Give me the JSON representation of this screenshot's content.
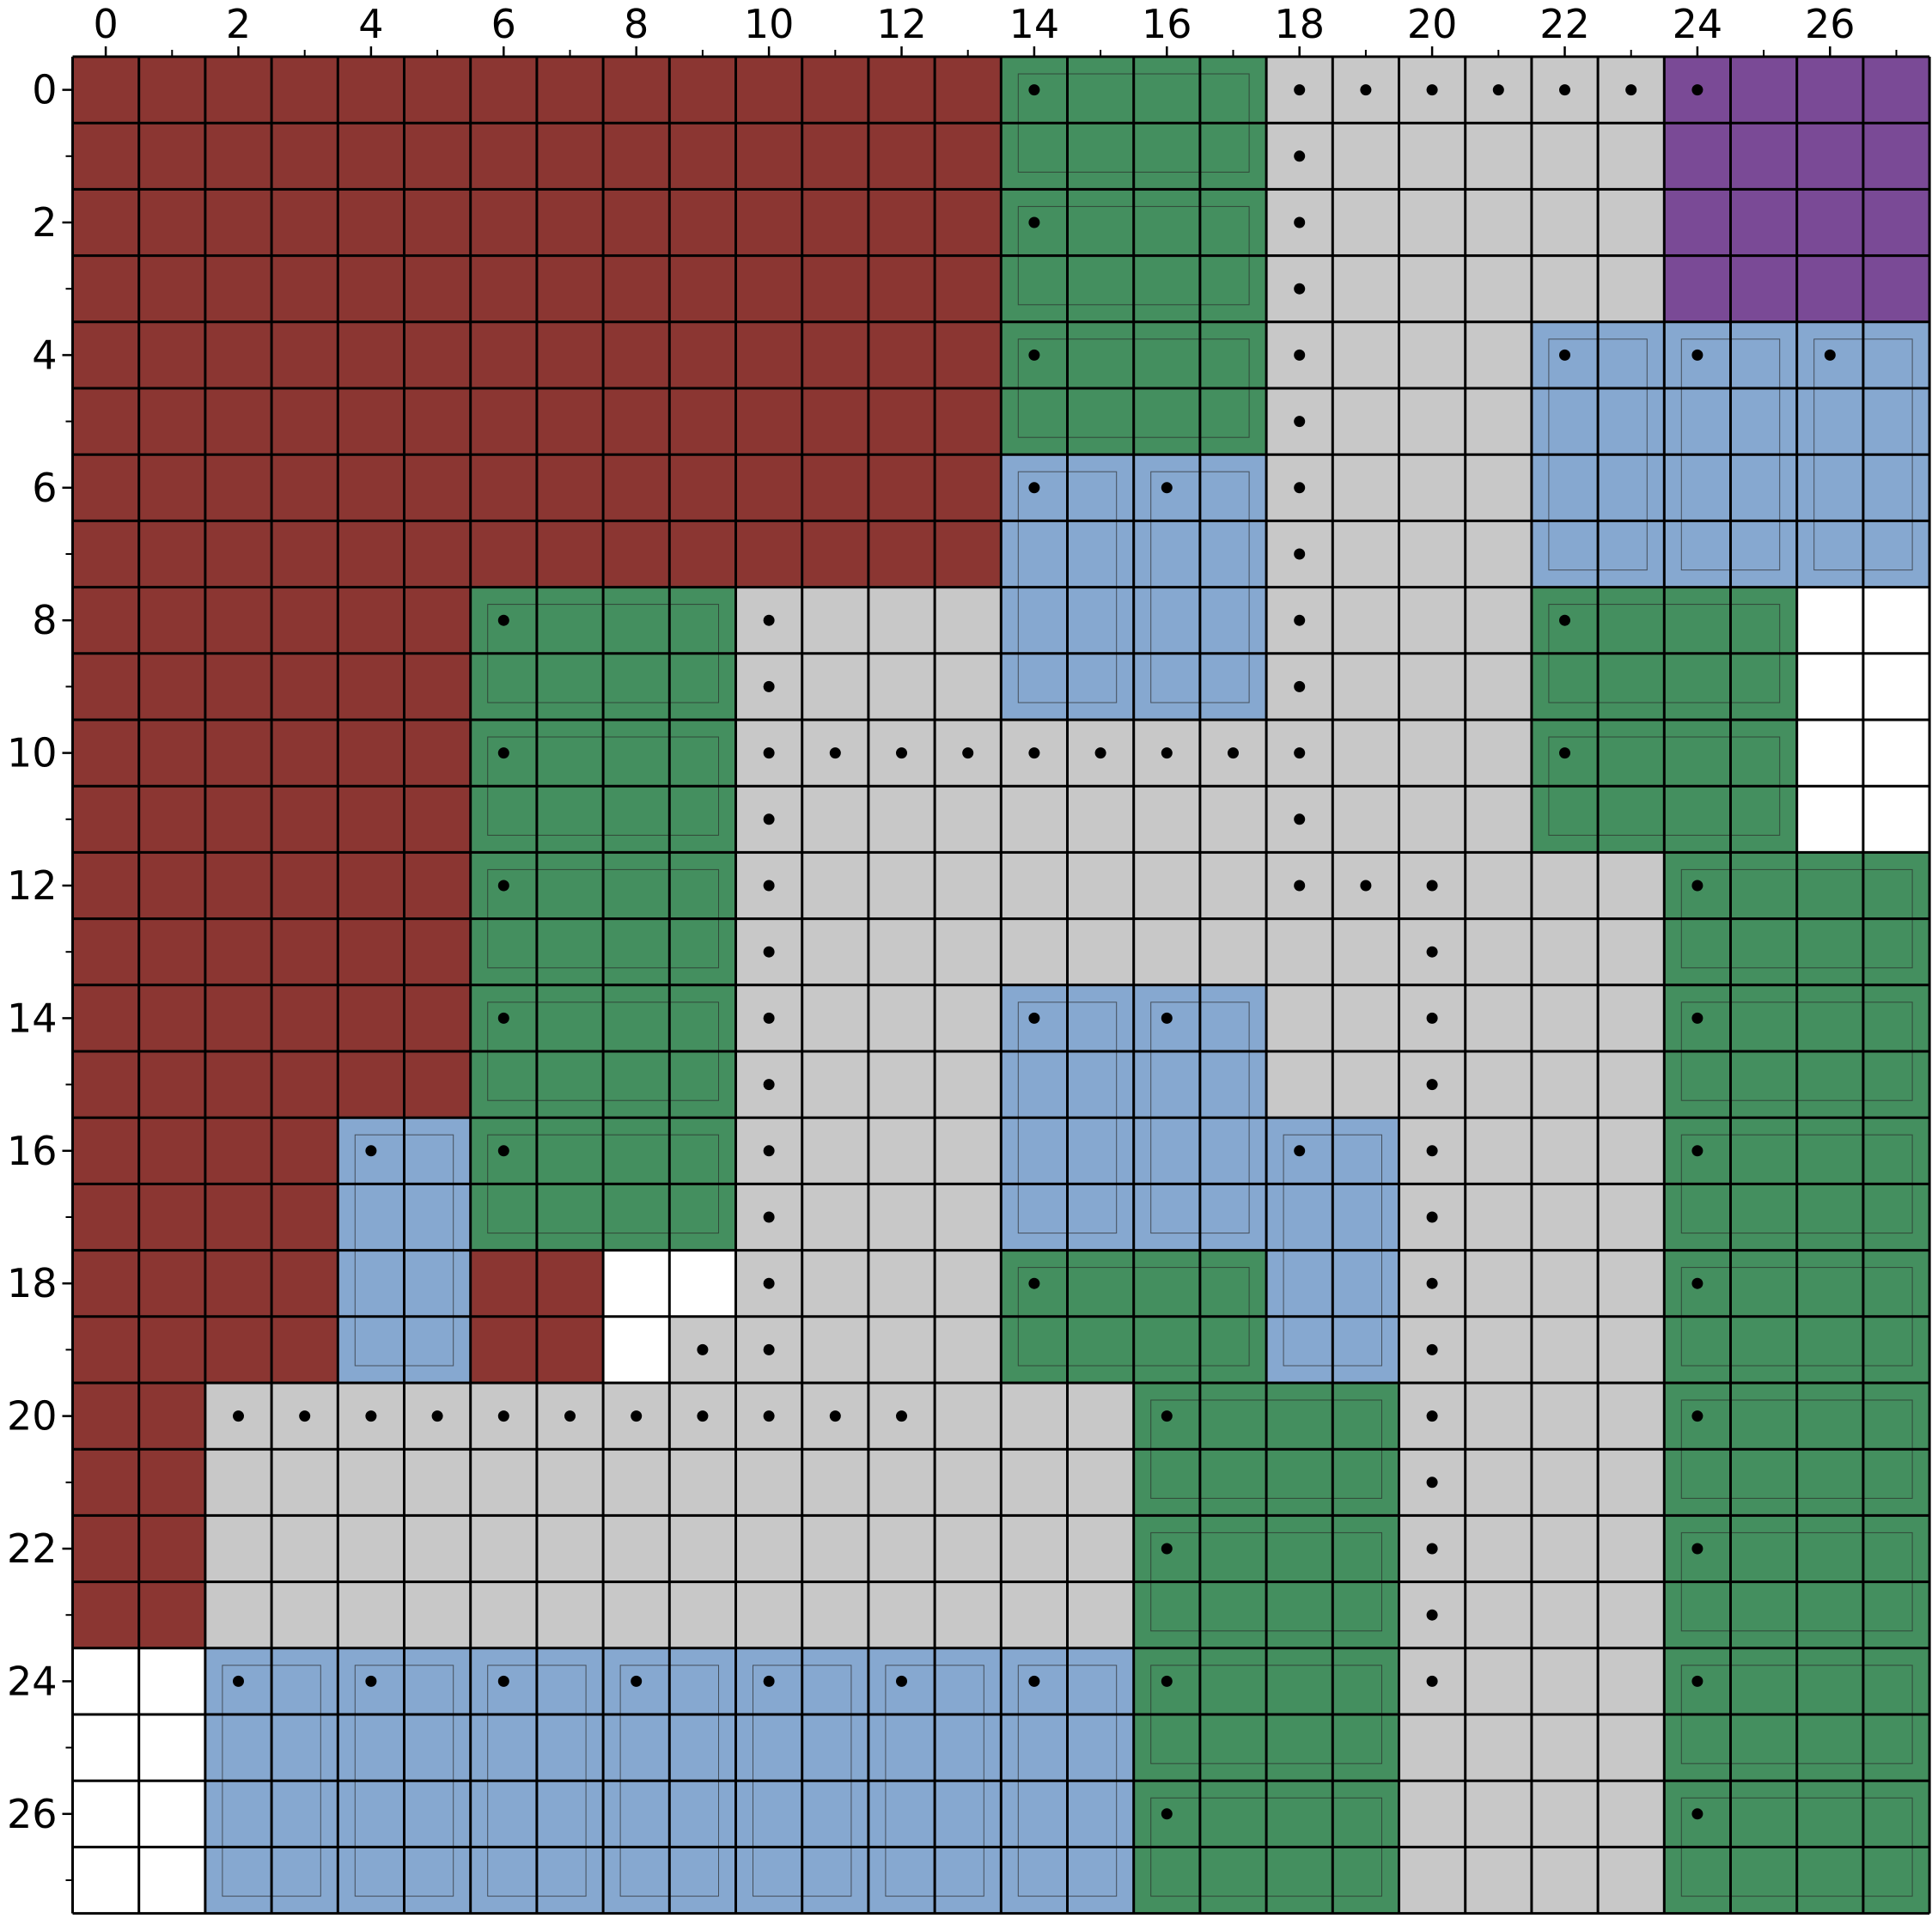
{
  "grid": {
    "rows": 28,
    "cols": 28
  },
  "axes": {
    "x_ticks": [
      "0",
      "2",
      "4",
      "6",
      "8",
      "10",
      "12",
      "14",
      "16",
      "18",
      "20",
      "22",
      "24",
      "26"
    ],
    "y_ticks": [
      "0",
      "2",
      "4",
      "6",
      "8",
      "10",
      "12",
      "14",
      "16",
      "18",
      "20",
      "22",
      "24",
      "26"
    ]
  },
  "colors": {
    "red": "#8b3632",
    "green": "#448f5f",
    "gray": "#c8c8c8",
    "purple": "#7a4a96",
    "blue": "#86a8d0",
    "white": "#ffffff",
    "gridline": "#000000",
    "dot": "#000000"
  },
  "cell_rows": [
    "RRRRRRRRRRRRRRGGGGSSSSSSPPPP",
    "RRRRRRRRRRRRRRGGGGSSSSSSPPPP",
    "RRRRRRRRRRRRRRGGGGSSSSSSPPPP",
    "RRRRRRRRRRRRRRGGGGSSSSSSPPPP",
    "RRRRRRRRRRRRRRGGGGSSSSBBBBBB",
    "RRRRRRRRRRRRRRGGGGSSSSBBBBBB",
    "RRRRRRRRRRRRRRBBBBSSSSBBBBBB",
    "RRRRRRRRRRRRRRBBBBSSSSBBBBBB",
    "RRRRRRGGGGSSSSBBBBSSSSGGGGWW",
    "RRRRRRGGGGSSSSBBBBSSSSGGGGWW",
    "RRRRRRGGGGSSSSSSSSSSSSGGGGWW",
    "RRRRRRGGGGSSSSSSSSSSSSGGGGWW",
    "RRRRRRGGGGSSSSSSSSSSSSSSGGGG",
    "RRRRRRGGGGSSSSSSSSSSSSSSGGGG",
    "RRRRRRGGGGSSSSBBBBSSSSSSGGGG",
    "RRRRRRGGGGSSSSBBBBSSSSSSGGGG",
    "RRRRBBGGGGSSSSBBBBBBSSSSGGGG",
    "RRRRBBGGGGSSSSBBBBBBSSSSGGGG",
    "RRRRBBRRWWSSSSGGGGBBSSSSGGGG",
    "RRRRBBRRWSSSSSGGGGBBSSSSGGGG",
    "RRSSSSSSSSSSSSSSGGGGSSSSGGGG",
    "RRSSSSSSSSSSSSSSGGGGSSSSGGGG",
    "RRSSSSSSSSSSSSSSGGGGSSSSGGGG",
    "RRSSSSSSSSSSSSSSGGGGSSSSGGGG",
    "WWBBBBBBBBBBBBBBGGGGSSSSGGGG",
    "WWBBBBBBBBBBBBBBGGGGSSSSGGGG",
    "WWBBBBBBBBBBBBBBGGGGSSSSGGGG",
    "WWBBBBBBBBBBBBBBGGGGSSSSGGGG"
  ],
  "blocks": [
    {
      "c": 14,
      "r": 0,
      "w": 4,
      "h": 2
    },
    {
      "c": 14,
      "r": 2,
      "w": 4,
      "h": 2
    },
    {
      "c": 14,
      "r": 4,
      "w": 4,
      "h": 2
    },
    {
      "c": 14,
      "r": 6,
      "w": 2,
      "h": 4
    },
    {
      "c": 16,
      "r": 6,
      "w": 2,
      "h": 4
    },
    {
      "c": 22,
      "r": 4,
      "w": 2,
      "h": 4
    },
    {
      "c": 24,
      "r": 4,
      "w": 2,
      "h": 4
    },
    {
      "c": 26,
      "r": 4,
      "w": 2,
      "h": 4
    },
    {
      "c": 6,
      "r": 8,
      "w": 4,
      "h": 2
    },
    {
      "c": 6,
      "r": 10,
      "w": 4,
      "h": 2
    },
    {
      "c": 6,
      "r": 12,
      "w": 4,
      "h": 2
    },
    {
      "c": 6,
      "r": 14,
      "w": 4,
      "h": 2
    },
    {
      "c": 6,
      "r": 16,
      "w": 4,
      "h": 2
    },
    {
      "c": 22,
      "r": 8,
      "w": 4,
      "h": 2
    },
    {
      "c": 22,
      "r": 10,
      "w": 4,
      "h": 2
    },
    {
      "c": 24,
      "r": 12,
      "w": 4,
      "h": 2
    },
    {
      "c": 24,
      "r": 14,
      "w": 4,
      "h": 2
    },
    {
      "c": 24,
      "r": 16,
      "w": 4,
      "h": 2
    },
    {
      "c": 24,
      "r": 18,
      "w": 4,
      "h": 2
    },
    {
      "c": 24,
      "r": 20,
      "w": 4,
      "h": 2
    },
    {
      "c": 24,
      "r": 22,
      "w": 4,
      "h": 2
    },
    {
      "c": 24,
      "r": 24,
      "w": 4,
      "h": 2
    },
    {
      "c": 24,
      "r": 26,
      "w": 4,
      "h": 2
    },
    {
      "c": 14,
      "r": 14,
      "w": 2,
      "h": 4
    },
    {
      "c": 16,
      "r": 14,
      "w": 2,
      "h": 4
    },
    {
      "c": 4,
      "r": 16,
      "w": 2,
      "h": 4
    },
    {
      "c": 18,
      "r": 16,
      "w": 2,
      "h": 4
    },
    {
      "c": 14,
      "r": 18,
      "w": 4,
      "h": 2
    },
    {
      "c": 16,
      "r": 20,
      "w": 4,
      "h": 2
    },
    {
      "c": 16,
      "r": 22,
      "w": 4,
      "h": 2
    },
    {
      "c": 16,
      "r": 24,
      "w": 4,
      "h": 2
    },
    {
      "c": 16,
      "r": 26,
      "w": 4,
      "h": 2
    },
    {
      "c": 2,
      "r": 24,
      "w": 2,
      "h": 4
    },
    {
      "c": 4,
      "r": 24,
      "w": 2,
      "h": 4
    },
    {
      "c": 6,
      "r": 24,
      "w": 2,
      "h": 4
    },
    {
      "c": 8,
      "r": 24,
      "w": 2,
      "h": 4
    },
    {
      "c": 10,
      "r": 24,
      "w": 2,
      "h": 4
    },
    {
      "c": 12,
      "r": 24,
      "w": 2,
      "h": 4
    },
    {
      "c": 14,
      "r": 24,
      "w": 2,
      "h": 4
    }
  ],
  "dots": [
    [
      14,
      0
    ],
    [
      18,
      0
    ],
    [
      19,
      0
    ],
    [
      20,
      0
    ],
    [
      21,
      0
    ],
    [
      22,
      0
    ],
    [
      23,
      0
    ],
    [
      24,
      0
    ],
    [
      18,
      1
    ],
    [
      14,
      2
    ],
    [
      18,
      2
    ],
    [
      18,
      3
    ],
    [
      14,
      4
    ],
    [
      18,
      4
    ],
    [
      22,
      4
    ],
    [
      24,
      4
    ],
    [
      26,
      4
    ],
    [
      18,
      5
    ],
    [
      14,
      6
    ],
    [
      16,
      6
    ],
    [
      18,
      6
    ],
    [
      18,
      7
    ],
    [
      6,
      8
    ],
    [
      10,
      8
    ],
    [
      18,
      8
    ],
    [
      22,
      8
    ],
    [
      10,
      9
    ],
    [
      18,
      9
    ],
    [
      6,
      10
    ],
    [
      10,
      10
    ],
    [
      11,
      10
    ],
    [
      12,
      10
    ],
    [
      13,
      10
    ],
    [
      14,
      10
    ],
    [
      15,
      10
    ],
    [
      16,
      10
    ],
    [
      17,
      10
    ],
    [
      18,
      10
    ],
    [
      22,
      10
    ],
    [
      10,
      11
    ],
    [
      18,
      11
    ],
    [
      6,
      12
    ],
    [
      10,
      12
    ],
    [
      18,
      12
    ],
    [
      19,
      12
    ],
    [
      20,
      12
    ],
    [
      24,
      12
    ],
    [
      10,
      13
    ],
    [
      20,
      13
    ],
    [
      6,
      14
    ],
    [
      10,
      14
    ],
    [
      14,
      14
    ],
    [
      16,
      14
    ],
    [
      20,
      14
    ],
    [
      24,
      14
    ],
    [
      10,
      15
    ],
    [
      20,
      15
    ],
    [
      4,
      16
    ],
    [
      6,
      16
    ],
    [
      10,
      16
    ],
    [
      18,
      16
    ],
    [
      20,
      16
    ],
    [
      24,
      16
    ],
    [
      10,
      17
    ],
    [
      20,
      17
    ],
    [
      10,
      18
    ],
    [
      14,
      18
    ],
    [
      20,
      18
    ],
    [
      24,
      18
    ],
    [
      9,
      19
    ],
    [
      10,
      19
    ],
    [
      20,
      19
    ],
    [
      2,
      20
    ],
    [
      3,
      20
    ],
    [
      4,
      20
    ],
    [
      5,
      20
    ],
    [
      6,
      20
    ],
    [
      7,
      20
    ],
    [
      8,
      20
    ],
    [
      9,
      20
    ],
    [
      10,
      20
    ],
    [
      11,
      20
    ],
    [
      12,
      20
    ],
    [
      16,
      20
    ],
    [
      20,
      20
    ],
    [
      24,
      20
    ],
    [
      20,
      21
    ],
    [
      16,
      22
    ],
    [
      20,
      22
    ],
    [
      24,
      22
    ],
    [
      20,
      23
    ],
    [
      2,
      24
    ],
    [
      4,
      24
    ],
    [
      6,
      24
    ],
    [
      8,
      24
    ],
    [
      10,
      24
    ],
    [
      12,
      24
    ],
    [
      14,
      24
    ],
    [
      16,
      24
    ],
    [
      20,
      24
    ],
    [
      24,
      24
    ],
    [
      16,
      26
    ],
    [
      24,
      26
    ]
  ]
}
